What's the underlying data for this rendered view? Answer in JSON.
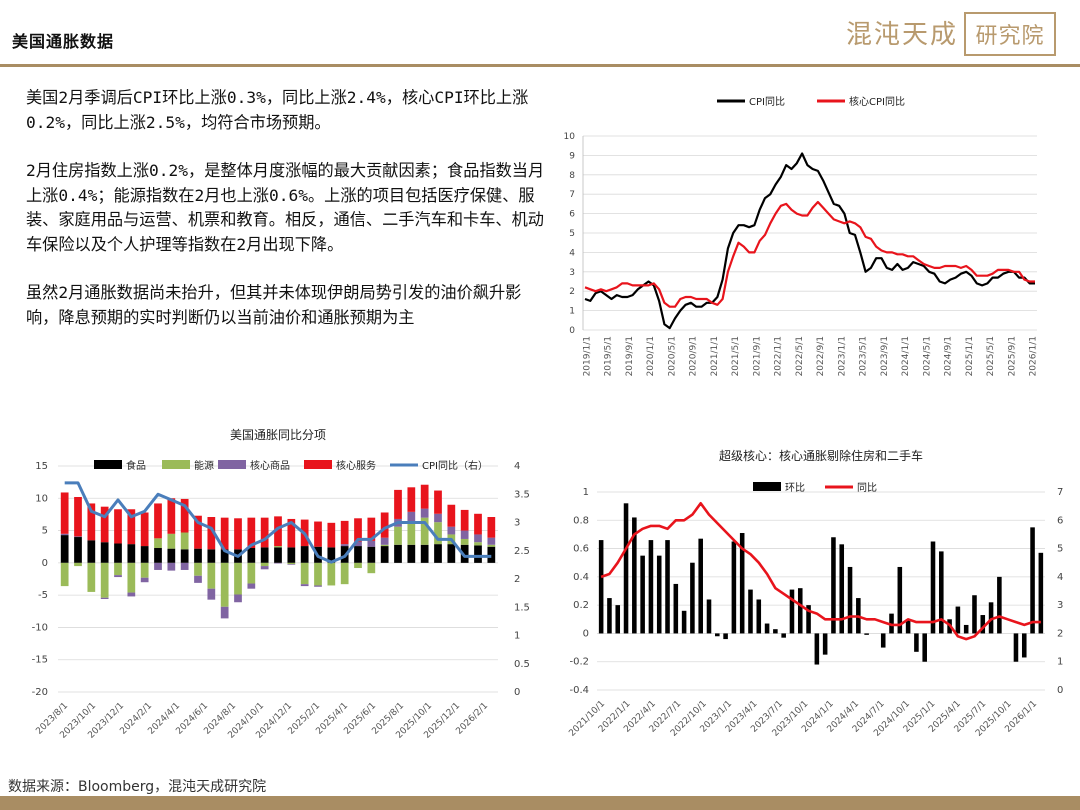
{
  "header": {
    "title": "美国通胀数据",
    "logo_text": "混沌天成",
    "logo_box_text": "研究院"
  },
  "commentary": [
    "美国2月季调后CPI环比上涨0.3%，同比上涨2.4%，核心CPI环比上涨0.2%，同比上涨2.5%，均符合市场预期。",
    "2月住房指数上涨0.2%，是整体月度涨幅的最大贡献因素；食品指数当月上涨0.4%；能源指数在2月也上涨0.6%。上涨的项目包括医疗保健、服装、家庭用品与运营、机票和教育。相反，通信、二手汽车和卡车、机动车保险以及个人护理等指数在2月出现下降。",
    "虽然2月通胀数据尚未抬升，但其并未体现伊朗局势引发的油价飙升影响，降息预期的实时判断仍以当前油价和通胀预期为主"
  ],
  "source": "数据来源：Bloomberg，混沌天成研究院",
  "colors": {
    "gold": "#a98d63",
    "black": "#000000",
    "red": "#e8141c",
    "green": "#9bbb59",
    "purple": "#8064a2",
    "blue": "#4a7ebb"
  },
  "chart_data": [
    {
      "type": "line",
      "title": "",
      "legend": [
        "CPI同比",
        "核心CPI同比"
      ],
      "legend_position": "top",
      "x_ticks": [
        "2019/1/1",
        "2019/5/1",
        "2019/9/1",
        "2020/1/1",
        "2020/5/1",
        "2020/9/1",
        "2021/1/1",
        "2021/5/1",
        "2021/9/1",
        "2022/1/1",
        "2022/5/1",
        "2022/9/1",
        "2023/1/1",
        "2023/5/1",
        "2023/9/1",
        "2024/1/1",
        "2024/5/1",
        "2024/9/1",
        "2025/1/1",
        "2025/5/1",
        "2025/9/1",
        "2026/1/1"
      ],
      "ylim": [
        0,
        10
      ],
      "y_ticks": [
        0,
        1,
        2,
        3,
        4,
        5,
        6,
        7,
        8,
        9,
        10
      ],
      "series": [
        {
          "name": "CPI同比",
          "color": "#000000",
          "values": [
            1.6,
            1.5,
            1.9,
            2.0,
            1.8,
            1.6,
            1.8,
            1.7,
            1.7,
            1.8,
            2.1,
            2.3,
            2.5,
            2.3,
            1.5,
            0.3,
            0.1,
            0.6,
            1.0,
            1.3,
            1.4,
            1.2,
            1.2,
            1.4,
            1.4,
            1.7,
            2.6,
            4.2,
            5.0,
            5.4,
            5.4,
            5.3,
            5.4,
            6.2,
            6.8,
            7.0,
            7.5,
            7.9,
            8.5,
            8.3,
            8.6,
            9.1,
            8.5,
            8.3,
            8.2,
            7.7,
            7.1,
            6.5,
            6.4,
            6.0,
            5.0,
            4.9,
            4.0,
            3.0,
            3.2,
            3.7,
            3.7,
            3.2,
            3.1,
            3.4,
            3.1,
            3.2,
            3.5,
            3.4,
            3.3,
            3.0,
            2.9,
            2.5,
            2.4,
            2.6,
            2.7,
            2.9,
            3.0,
            2.8,
            2.4,
            2.3,
            2.4,
            2.7,
            2.7,
            2.9,
            3.0,
            3.0,
            2.7,
            2.7,
            2.4,
            2.4
          ]
        },
        {
          "name": "核心CPI同比",
          "color": "#e8141c",
          "values": [
            2.2,
            2.1,
            2.0,
            2.1,
            2.0,
            2.1,
            2.2,
            2.4,
            2.4,
            2.3,
            2.3,
            2.3,
            2.3,
            2.4,
            2.1,
            1.4,
            1.2,
            1.2,
            1.6,
            1.7,
            1.7,
            1.6,
            1.6,
            1.6,
            1.4,
            1.3,
            1.6,
            3.0,
            3.8,
            4.5,
            4.3,
            4.0,
            4.0,
            4.6,
            4.9,
            5.5,
            6.0,
            6.4,
            6.5,
            6.2,
            6.0,
            5.9,
            5.9,
            6.3,
            6.6,
            6.3,
            6.0,
            5.7,
            5.6,
            5.5,
            5.6,
            5.5,
            5.3,
            4.8,
            4.7,
            4.3,
            4.1,
            4.0,
            4.0,
            3.9,
            3.9,
            3.8,
            3.8,
            3.6,
            3.4,
            3.3,
            3.2,
            3.2,
            3.3,
            3.3,
            3.3,
            3.2,
            3.3,
            3.1,
            2.8,
            2.8,
            2.8,
            2.9,
            3.1,
            3.1,
            3.1,
            3.0,
            3.0,
            2.6,
            2.5,
            2.5
          ]
        }
      ]
    },
    {
      "type": "bar",
      "title": "美国通胀同比分项",
      "legend": [
        "食品",
        "能源",
        "核心商品",
        "核心服务",
        "CPI同比（右）"
      ],
      "legend_position": "top",
      "x_ticks": [
        "2023/8/1",
        "2023/10/1",
        "2023/12/1",
        "2024/2/1",
        "2024/4/1",
        "2024/6/1",
        "2024/8/1",
        "2024/10/1",
        "2024/12/1",
        "2025/2/1",
        "2025/4/1",
        "2025/6/1",
        "2025/8/1",
        "2025/10/1",
        "2025/12/1",
        "2026/2/1"
      ],
      "ylim_left": [
        -20,
        15
      ],
      "y_ticks_left": [
        -20,
        -15,
        -10,
        -5,
        0,
        5,
        10,
        15
      ],
      "ylim_right": [
        0,
        4
      ],
      "y_ticks_right": [
        0,
        0.5,
        1,
        1.5,
        2,
        2.5,
        3,
        3.5,
        4
      ],
      "stacked_series": [
        {
          "name": "食品",
          "color": "#000000",
          "values": [
            4.3,
            4.0,
            3.5,
            3.2,
            3.0,
            2.9,
            2.6,
            2.3,
            2.2,
            2.1,
            2.2,
            2.1,
            2.1,
            2.1,
            2.3,
            2.4,
            2.4,
            2.4,
            2.6,
            2.5,
            2.4,
            2.6,
            2.6,
            2.5,
            2.6,
            2.8,
            2.8,
            2.8,
            2.9,
            2.9,
            2.8,
            2.7,
            2.5
          ]
        },
        {
          "name": "能源",
          "color": "#9bbb59",
          "values": [
            -3.6,
            -0.5,
            -4.5,
            -5.4,
            -1.9,
            -4.6,
            -2.3,
            1.5,
            2.3,
            2.6,
            -2.0,
            -4.0,
            -6.8,
            -4.9,
            -3.2,
            -0.5,
            0.2,
            -0.2,
            -3.3,
            -3.5,
            -3.5,
            -3.3,
            -0.8,
            -1.6,
            0.2,
            2.8,
            3.6,
            4.2,
            3.4,
            1.5,
            0.9,
            0.5,
            0.3
          ]
        },
        {
          "name": "核心商品",
          "color": "#8064a2",
          "values": [
            0.2,
            0.1,
            0.0,
            -0.2,
            -0.3,
            -0.6,
            -0.7,
            -1.1,
            -1.2,
            -1.1,
            -1.1,
            -1.7,
            -1.8,
            -1.2,
            -0.8,
            -0.5,
            -0.1,
            -0.1,
            -0.3,
            -0.2,
            0.0,
            0.3,
            0.7,
            0.9,
            1.1,
            1.2,
            1.5,
            1.4,
            1.3,
            1.2,
            1.3,
            1.2,
            1.1
          ]
        },
        {
          "name": "核心服务",
          "color": "#e8141c",
          "values": [
            6.4,
            6.1,
            5.7,
            5.5,
            5.3,
            5.4,
            5.2,
            5.4,
            5.5,
            5.2,
            5.1,
            5.0,
            4.9,
            4.8,
            4.7,
            4.6,
            4.6,
            4.4,
            4.1,
            3.9,
            3.8,
            3.6,
            3.6,
            3.6,
            3.9,
            4.5,
            3.8,
            3.7,
            3.6,
            3.4,
            3.2,
            3.2,
            3.2
          ]
        }
      ],
      "line_series": {
        "name": "CPI同比（右）",
        "color": "#4a7ebb",
        "values": [
          3.7,
          3.7,
          3.2,
          3.1,
          3.4,
          3.1,
          3.2,
          3.5,
          3.4,
          3.3,
          3.0,
          2.9,
          2.5,
          2.4,
          2.6,
          2.7,
          2.9,
          3.0,
          2.8,
          2.4,
          2.3,
          2.4,
          2.7,
          2.7,
          2.9,
          3.0,
          3.0,
          3.0,
          2.7,
          2.7,
          2.4,
          2.4,
          2.4
        ]
      }
    },
    {
      "type": "bar",
      "title": "超级核心：核心通胀剔除住房和二手车",
      "legend": [
        "环比",
        "同比"
      ],
      "legend_position": "top",
      "x_ticks": [
        "2021/10/1",
        "2022/1/1",
        "2022/4/1",
        "2022/7/1",
        "2022/10/1",
        "2023/1/1",
        "2023/4/1",
        "2023/7/1",
        "2023/10/1",
        "2024/1/1",
        "2024/4/1",
        "2024/7/1",
        "2024/10/1",
        "2025/1/1",
        "2025/4/1",
        "2025/7/1",
        "2025/10/1",
        "2026/1/1"
      ],
      "ylim_left": [
        -0.4,
        1
      ],
      "y_ticks_left": [
        -0.4,
        -0.2,
        0,
        0.2,
        0.4,
        0.6,
        0.8,
        1
      ],
      "ylim_right": [
        0,
        7
      ],
      "y_ticks_right": [
        0,
        1,
        2,
        3,
        4,
        5,
        6,
        7
      ],
      "bar_series": {
        "name": "环比",
        "color": "#000000",
        "values": [
          0.66,
          0.25,
          0.2,
          0.92,
          0.82,
          0.55,
          0.66,
          0.55,
          0.66,
          0.35,
          0.16,
          0.5,
          0.67,
          0.24,
          -0.02,
          -0.04,
          0.65,
          0.71,
          0.31,
          0.24,
          0.07,
          0.03,
          -0.03,
          0.31,
          0.32,
          0.2,
          -0.22,
          -0.15,
          0.68,
          0.63,
          0.47,
          0.25,
          -0.01,
          0.0,
          -0.1,
          0.14,
          0.47,
          0.1,
          -0.13,
          -0.2,
          0.65,
          0.58,
          0.1,
          0.19,
          0.06,
          0.27,
          0.13,
          0.22,
          0.4,
          0.0,
          -0.2,
          -0.17,
          0.75,
          0.57
        ]
      },
      "line_series": {
        "name": "同比",
        "color": "#e8141c",
        "values": [
          4.0,
          4.1,
          4.5,
          5.0,
          5.5,
          5.7,
          5.8,
          5.8,
          5.7,
          6.0,
          6.0,
          6.2,
          6.6,
          6.2,
          5.9,
          5.6,
          5.3,
          5.0,
          4.8,
          4.5,
          4.1,
          3.6,
          3.4,
          3.2,
          3.0,
          2.8,
          2.7,
          2.5,
          2.5,
          2.5,
          2.6,
          2.6,
          2.5,
          2.5,
          2.4,
          2.3,
          2.3,
          2.5,
          2.4,
          2.4,
          2.4,
          2.5,
          2.3,
          1.9,
          1.8,
          1.9,
          2.2,
          2.5,
          2.6,
          2.5,
          2.4,
          2.3,
          2.4,
          2.4
        ]
      }
    }
  ]
}
